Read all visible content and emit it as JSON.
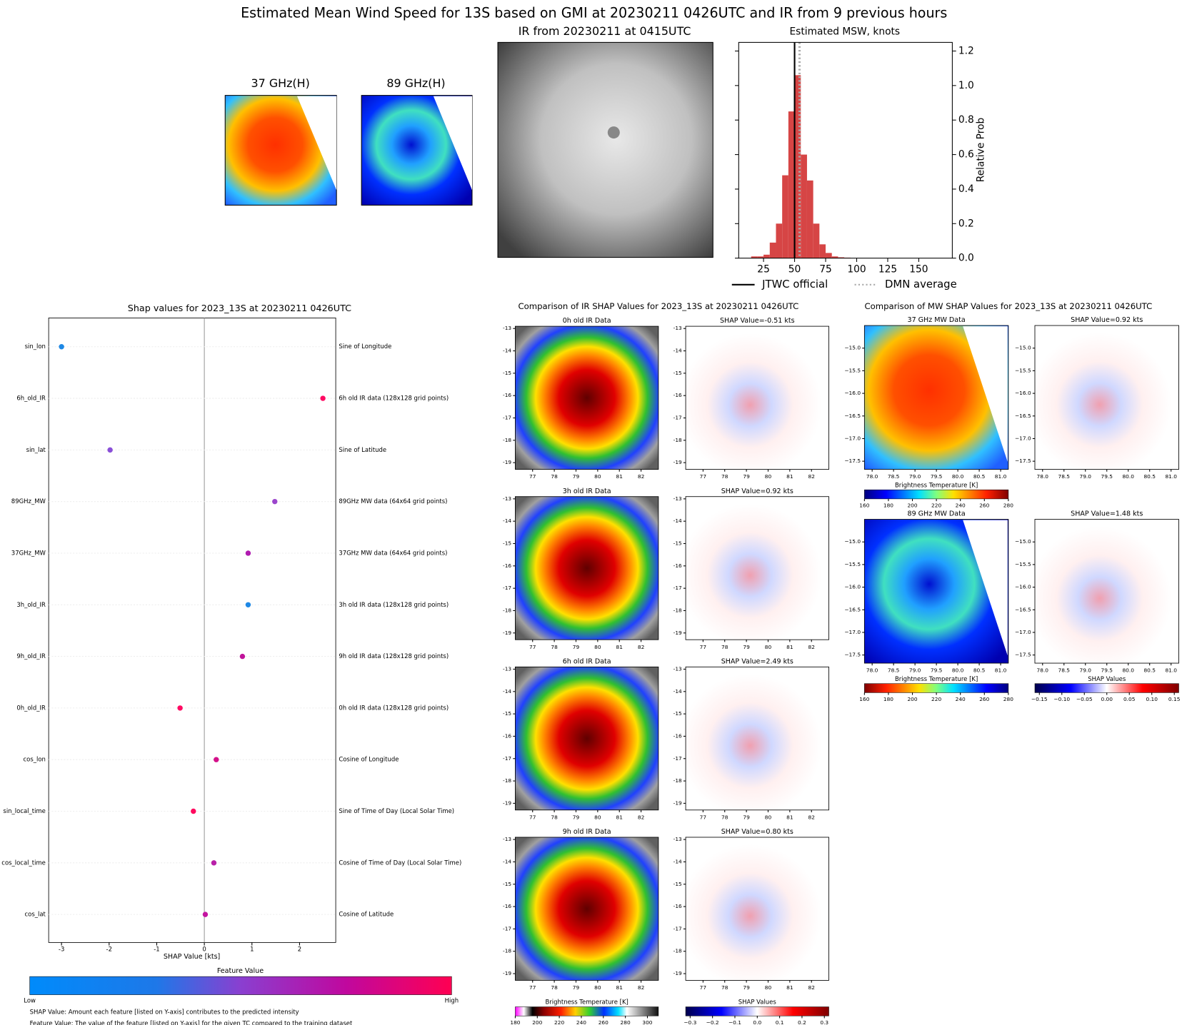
{
  "title": "Estimated Mean Wind Speed for 13S based on GMI at 20230211 0426UTC and IR from 9 previous hours",
  "mw_images": [
    {
      "title": "37 GHz(H)"
    },
    {
      "title": "89 GHz(H)"
    }
  ],
  "ir_image": {
    "title": "IR from 20230211 at 0415UTC"
  },
  "chart_data": [
    {
      "type": "histogram",
      "title": "Estimated MSW, knots",
      "bins": [
        15,
        20,
        25,
        30,
        35,
        40,
        45,
        50,
        55,
        60,
        65,
        70,
        75,
        80,
        85,
        90,
        95
      ],
      "values": [
        0.01,
        0.01,
        0.02,
        0.09,
        0.2,
        0.48,
        0.85,
        1.06,
        0.6,
        0.45,
        0.2,
        0.08,
        0.03,
        0.01,
        0.005,
        0.003
      ],
      "color": "#d64545",
      "xlim": [
        5,
        177
      ],
      "xticks": [
        25,
        50,
        75,
        100,
        125,
        150
      ],
      "ylim": [
        0,
        1.25
      ],
      "yticks": [
        {
          "value": 0,
          "label": "0.0"
        },
        0.2,
        0.4,
        0.6,
        0.8,
        {
          "value": 1,
          "label": "1.0"
        },
        1.2
      ],
      "y_label": "Relative Prob",
      "y_axis_side": "right",
      "reference_lines": [
        {
          "name": "JTWC official",
          "value": 50,
          "color": "#000000",
          "style": "solid"
        },
        {
          "name": "DMN average",
          "value": 54,
          "color": "#aaaaaa",
          "style": "dotted"
        }
      ]
    },
    {
      "type": "scatter",
      "title": "Shap values for 2023_13S at 20230211 0426UTC",
      "categories": [
        "sin_lon",
        "6h_old_IR",
        "sin_lat",
        "89GHz_MW",
        "37GHz_MW",
        "3h_old_IR",
        "9h_old_IR",
        "0h_old_IR",
        "cos_lon",
        "sin_local_time",
        "cos_local_time",
        "cos_lat"
      ],
      "descriptions": [
        "Sine of Longitude",
        "6h old IR data (128x128 grid points)",
        "Sine of Latitude",
        "89GHz MW data (64x64 grid points)",
        "37GHz MW data (64x64 grid points)",
        "3h old IR data (128x128 grid points)",
        "9h old IR data (128x128 grid points)",
        "0h old IR data (128x128 grid points)",
        "Cosine of Longitude",
        "Sine of Time of Day (Local Solar Time)",
        "Cosine of Time of Day (Local Solar Time)",
        "Cosine of Latitude"
      ],
      "values": [
        -3.0,
        2.49,
        -1.98,
        1.48,
        0.92,
        0.92,
        0.8,
        -0.51,
        0.25,
        -0.23,
        0.2,
        0.02
      ],
      "colors": [
        "#1e88e5",
        "#ff0a62",
        "#8a4fd8",
        "#9b45cc",
        "#b01ab0",
        "#1e88e5",
        "#c0149a",
        "#ff0a62",
        "#d4108a",
        "#ff0a5e",
        "#b820a8",
        "#c414a0"
      ],
      "xlim": [
        -3.27,
        2.76
      ],
      "xticks": [
        -3,
        -2,
        -1,
        0,
        1,
        2
      ],
      "x_label": "SHAP Value [kts]",
      "colorbar": {
        "title": "Feature Value",
        "low": "Low",
        "high": "High"
      },
      "notes": [
        "SHAP Value: Amount each feature [listed on Y-axis] contributes to the predicted intensity",
        "Feature Value: The value of the feature [listed on Y-axis] for the given TC compared to the training dataset"
      ]
    }
  ],
  "ir_comparison": {
    "title": "Comparison of IR SHAP Values for 2023_13S at 20230211 0426UTC",
    "rows": [
      {
        "data_title": "0h old IR Data",
        "shap_title": "SHAP Value=-0.51 kts"
      },
      {
        "data_title": "3h old IR Data",
        "shap_title": "SHAP Value=0.92 kts"
      },
      {
        "data_title": "6h old IR Data",
        "shap_title": "SHAP Value=2.49 kts"
      },
      {
        "data_title": "9h old IR Data",
        "shap_title": "SHAP Value=0.80 kts"
      }
    ],
    "xlim": [
      76.2,
      82.8
    ],
    "ylim": [
      -19.3,
      -12.9
    ],
    "xticks": [
      77,
      78,
      79,
      80,
      81,
      82
    ],
    "yticks": [
      -13,
      -14,
      -15,
      -16,
      -17,
      -18,
      -19
    ],
    "colorbars": [
      {
        "label": "Brightness Temperature [K]",
        "lim": [
          180,
          310
        ],
        "ticks": [
          180,
          200,
          220,
          240,
          260,
          280,
          300
        ]
      },
      {
        "label": "SHAP Values",
        "lim": [
          -0.32,
          0.32
        ],
        "ticks": [
          {
            "value": -0.3,
            "label": "−0.3"
          },
          {
            "value": -0.2,
            "label": "−0.2"
          },
          {
            "value": -0.1,
            "label": "−0.1"
          },
          {
            "value": 0,
            "label": "0.0"
          },
          0.1,
          0.2,
          0.3
        ]
      }
    ]
  },
  "mw_comparison": {
    "title": "Comparison of MW SHAP Values for 2023_13S at 20230211 0426UTC",
    "rows": [
      {
        "data_title": "37 GHz MW Data",
        "shap_title": "SHAP Value=0.92 kts"
      },
      {
        "data_title": "89 GHz MW Data",
        "shap_title": "SHAP Value=1.48 kts"
      }
    ],
    "xlim": [
      77.82,
      81.18
    ],
    "ylim": [
      -17.68,
      -14.5
    ],
    "xticks": [
      {
        "value": 78,
        "label": "78.0"
      },
      78.5,
      {
        "value": 79,
        "label": "79.0"
      },
      79.5,
      {
        "value": 80,
        "label": "80.0"
      },
      80.5,
      {
        "value": 81,
        "label": "81.0"
      }
    ],
    "yticks": [
      {
        "value": -15,
        "label": "−15.0"
      },
      {
        "value": -15.5,
        "label": "−15.5"
      },
      {
        "value": -16,
        "label": "−16.0"
      },
      {
        "value": -16.5,
        "label": "−16.5"
      },
      {
        "value": -17,
        "label": "−17.0"
      },
      {
        "value": -17.5,
        "label": "−17.5"
      }
    ],
    "colorbars": [
      {
        "label": "Brightness Temperature [K]",
        "lim": [
          160,
          280
        ],
        "ticks": [
          160,
          180,
          200,
          220,
          240,
          260,
          280
        ]
      },
      {
        "label": "Brightness Temperature [K]",
        "lim": [
          160,
          280
        ],
        "ticks": [
          160,
          180,
          200,
          220,
          240,
          260,
          280
        ]
      },
      {
        "label": "SHAP Values",
        "lim": [
          -0.16,
          0.16
        ],
        "ticks": [
          {
            "value": -0.15,
            "label": "−0.15"
          },
          {
            "value": -0.1,
            "label": "−0.10"
          },
          {
            "value": -0.05,
            "label": "−0.05"
          },
          {
            "value": 0,
            "label": "0.00"
          },
          0.05,
          {
            "value": 0.1,
            "label": "0.10"
          },
          0.15
        ]
      }
    ]
  }
}
